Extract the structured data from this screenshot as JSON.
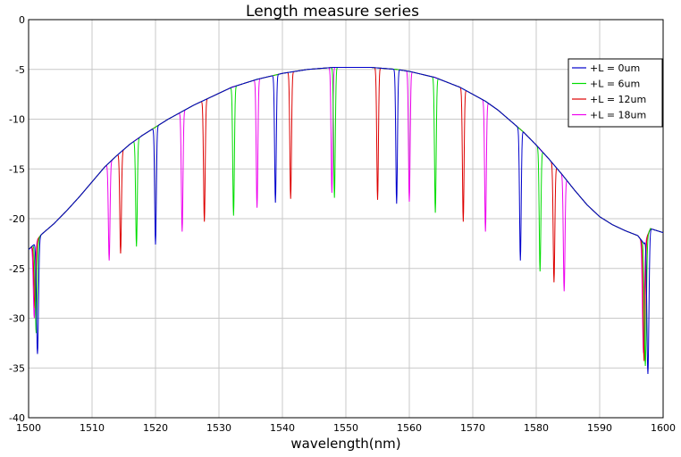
{
  "chart_data": {
    "type": "line",
    "title": "Length measure series",
    "xlabel": "wavelength(nm)",
    "ylabel": "",
    "xlim": [
      1500,
      1600
    ],
    "ylim": [
      -40,
      0
    ],
    "xticks": [
      1500,
      1510,
      1520,
      1530,
      1540,
      1550,
      1560,
      1570,
      1580,
      1590,
      1600
    ],
    "yticks": [
      0,
      -5,
      -10,
      -15,
      -20,
      -25,
      -30,
      -35,
      -40
    ],
    "grid": true,
    "legend_position": "top-right",
    "envelope": {
      "x": [
        1500,
        1500.5,
        1501,
        1501.5,
        1502,
        1504,
        1506,
        1508,
        1510,
        1512,
        1514,
        1516,
        1518,
        1520,
        1522,
        1524,
        1526,
        1528,
        1530,
        1532,
        1534,
        1536,
        1538,
        1540,
        1542,
        1544,
        1546,
        1548,
        1550,
        1552,
        1554,
        1556,
        1558,
        1560,
        1562,
        1564,
        1566,
        1568,
        1570,
        1572,
        1574,
        1576,
        1578,
        1580,
        1582,
        1584,
        1586,
        1588,
        1590,
        1592,
        1594,
        1596,
        1597,
        1598,
        1599,
        1600
      ],
      "y": [
        -23.1,
        -22.8,
        -22.5,
        -22.0,
        -21.6,
        -20.5,
        -19.2,
        -17.8,
        -16.3,
        -14.8,
        -13.6,
        -12.5,
        -11.6,
        -10.8,
        -10.0,
        -9.3,
        -8.6,
        -8.0,
        -7.4,
        -6.8,
        -6.4,
        -6.0,
        -5.7,
        -5.4,
        -5.2,
        -5.0,
        -4.9,
        -4.8,
        -4.8,
        -4.8,
        -4.8,
        -4.9,
        -5.0,
        -5.2,
        -5.5,
        -5.8,
        -6.3,
        -6.8,
        -7.5,
        -8.2,
        -9.1,
        -10.2,
        -11.3,
        -12.6,
        -14.0,
        -15.5,
        -17.1,
        -18.6,
        -19.8,
        -20.6,
        -21.2,
        -21.7,
        -22.5,
        -21.0,
        -21.2,
        -21.4
      ]
    },
    "series": [
      {
        "name": "+L = 0um",
        "color": "#0000cc",
        "dips": [
          [
            1501.4,
            -33.6
          ],
          [
            1520.0,
            -22.6
          ],
          [
            1538.9,
            -18.4
          ],
          [
            1558.0,
            -18.5
          ],
          [
            1577.5,
            -24.2
          ],
          [
            1597.6,
            -35.6
          ]
        ]
      },
      {
        "name": "+L = 6um",
        "color": "#00dd00",
        "dips": [
          [
            1501.2,
            -31.5
          ],
          [
            1517.0,
            -22.8
          ],
          [
            1532.3,
            -19.7
          ],
          [
            1548.2,
            -17.9
          ],
          [
            1564.1,
            -19.4
          ],
          [
            1580.6,
            -25.3
          ],
          [
            1597.2,
            -34.8
          ]
        ]
      },
      {
        "name": "+L = 12um",
        "color": "#dd0000",
        "dips": [
          [
            1501.0,
            -29.0
          ],
          [
            1514.5,
            -23.5
          ],
          [
            1527.7,
            -20.3
          ],
          [
            1541.3,
            -18.0
          ],
          [
            1555.0,
            -18.1
          ],
          [
            1568.5,
            -20.3
          ],
          [
            1582.8,
            -26.4
          ],
          [
            1597.0,
            -34.3
          ]
        ]
      },
      {
        "name": "+L = 18um",
        "color": "#ee00ee",
        "dips": [
          [
            1500.9,
            -30.0
          ],
          [
            1512.7,
            -24.2
          ],
          [
            1524.2,
            -21.3
          ],
          [
            1536.0,
            -18.9
          ],
          [
            1547.8,
            -17.4
          ],
          [
            1560.0,
            -18.3
          ],
          [
            1572.0,
            -21.3
          ],
          [
            1584.4,
            -27.3
          ],
          [
            1596.9,
            -33.5
          ]
        ]
      }
    ]
  }
}
